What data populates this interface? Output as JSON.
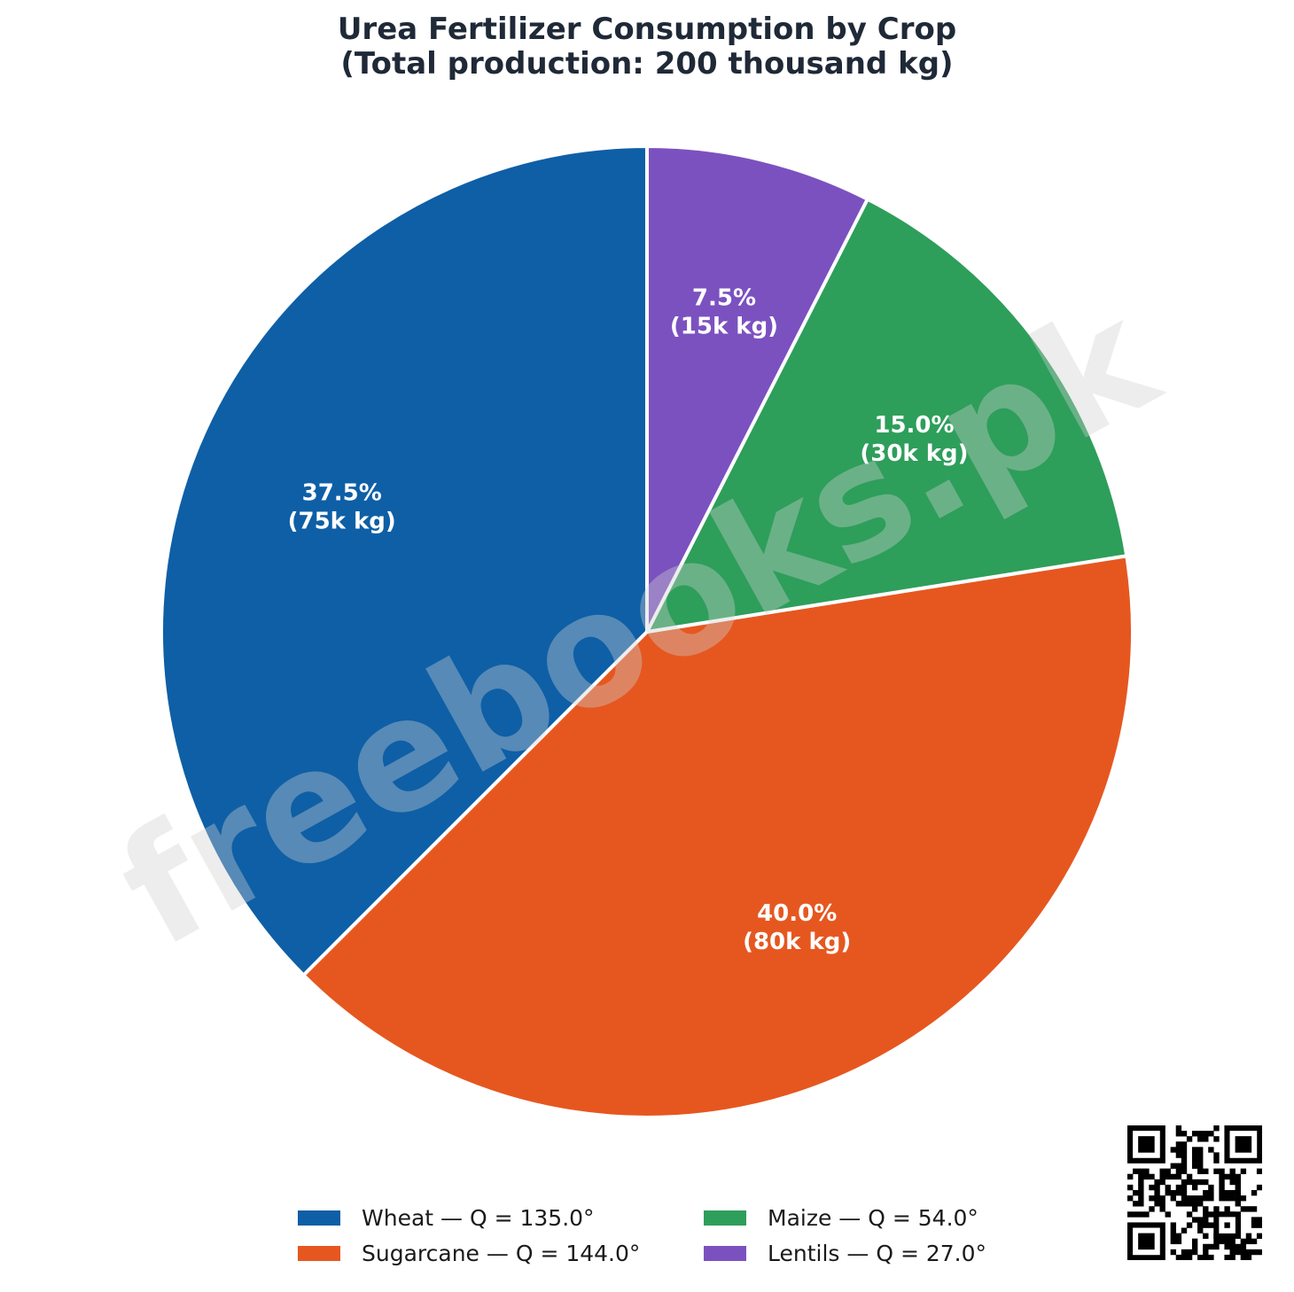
{
  "title_lines": [
    "Urea Fertilizer Consumption by Crop",
    "(Total production: 200 thousand kg)"
  ],
  "watermark": "freebooks.pk",
  "chart_data": {
    "type": "pie",
    "title": "Urea Fertilizer Consumption by Crop\n(Total production: 200 thousand kg)",
    "start": "top, counter-clockwise order Wheat, Sugarcane, Maize, Lentils",
    "slices": [
      {
        "name": "Wheat",
        "value_k_kg": 75,
        "percent": 37.5,
        "angle_deg": 135.0,
        "color": "#0e5fa6",
        "label": [
          "37.5%",
          "(75k kg)"
        ],
        "legend": "Wheat — Q = 135.0°"
      },
      {
        "name": "Sugarcane",
        "value_k_kg": 80,
        "percent": 40.0,
        "angle_deg": 144.0,
        "color": "#e65720",
        "label": [
          "40.0%",
          "(80k kg)"
        ],
        "legend": "Sugarcane — Q = 144.0°"
      },
      {
        "name": "Maize",
        "value_k_kg": 30,
        "percent": 15.0,
        "angle_deg": 54.0,
        "color": "#2e9e5b",
        "label": [
          "15.0%",
          "(30k kg)"
        ],
        "legend": "Maize — Q = 54.0°"
      },
      {
        "name": "Lentils",
        "value_k_kg": 15,
        "percent": 7.5,
        "angle_deg": 27.0,
        "color": "#7b51c0",
        "label": [
          "7.5%",
          "(15k kg)"
        ],
        "legend": "Lentils — Q = 27.0°"
      }
    ],
    "legend_placement": "bottom-center, 2 columns"
  },
  "qr_code": {
    "icon": "qr-code-icon"
  }
}
